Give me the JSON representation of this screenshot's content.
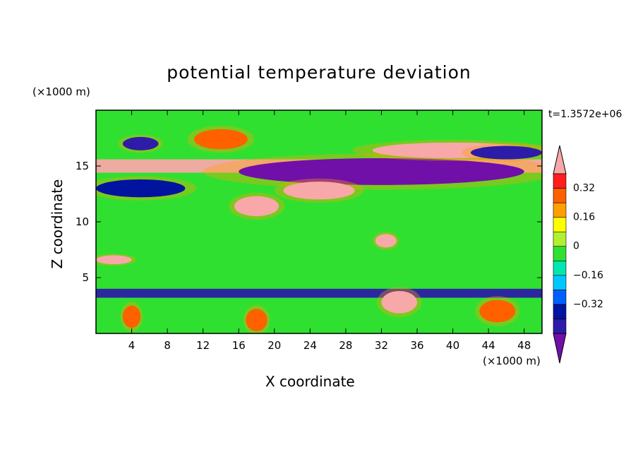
{
  "chart_data": {
    "type": "heatmap",
    "title": "potential temperature deviation",
    "xlabel": "X coordinate",
    "ylabel": "Z coordinate",
    "x_unit": "(×1000 m)",
    "y_unit": "(×1000 m)",
    "time_label": "t=1.3572e+06",
    "xlim": [
      0,
      50
    ],
    "ylim": [
      0,
      20
    ],
    "x_ticks": [
      4,
      8,
      12,
      16,
      20,
      24,
      28,
      32,
      36,
      40,
      44,
      48
    ],
    "y_ticks": [
      5,
      10,
      15
    ],
    "colorbar": {
      "levels": [
        -0.48,
        -0.4,
        -0.32,
        -0.24,
        -0.16,
        -0.08,
        0,
        0.08,
        0.16,
        0.24,
        0.32,
        0.4,
        0.48
      ],
      "tick_labels": [
        "0.32",
        "0.16",
        "0",
        "−0.16",
        "−0.32"
      ],
      "tick_values": [
        0.32,
        0.16,
        0,
        -0.16,
        -0.32
      ],
      "colors": [
        "#7010a8",
        "#2c1ca8",
        "#0014a0",
        "#0060ff",
        "#00c8ff",
        "#00e8b0",
        "#30e030",
        "#b0f030",
        "#ffff00",
        "#ffa000",
        "#ff6000",
        "#ff1e1e",
        "#f8a8a8"
      ],
      "extend": "both"
    },
    "background_color": "#30e030",
    "regions": [
      {
        "shape": "band",
        "x": [
          0,
          50
        ],
        "y": [
          14.4,
          15.6
        ],
        "value": 0.48
      },
      {
        "shape": "ellipse",
        "cx": 32,
        "cy": 14.5,
        "rx": 16,
        "ry": 1.2,
        "value": -0.48
      },
      {
        "shape": "ellipse",
        "cx": 40,
        "cy": 16.4,
        "rx": 9,
        "ry": 0.7,
        "value": 0.48
      },
      {
        "shape": "ellipse",
        "cx": 46,
        "cy": 16.2,
        "rx": 4,
        "ry": 0.6,
        "value": -0.4
      },
      {
        "shape": "ellipse",
        "cx": 5,
        "cy": 13,
        "rx": 5,
        "ry": 0.8,
        "value": -0.32
      },
      {
        "shape": "ellipse",
        "cx": 18,
        "cy": 11.4,
        "rx": 2.5,
        "ry": 0.9,
        "value": 0.48
      },
      {
        "shape": "ellipse",
        "cx": 25,
        "cy": 12.8,
        "rx": 4,
        "ry": 0.8,
        "value": 0.48
      },
      {
        "shape": "ellipse",
        "cx": 32.5,
        "cy": 8.3,
        "rx": 1.2,
        "ry": 0.6,
        "value": 0.48
      },
      {
        "shape": "ellipse",
        "cx": 14,
        "cy": 17.4,
        "rx": 3,
        "ry": 0.9,
        "value": 0.32
      },
      {
        "shape": "ellipse",
        "cx": 5,
        "cy": 17,
        "rx": 2,
        "ry": 0.6,
        "value": -0.4
      },
      {
        "shape": "ellipse",
        "cx": 2,
        "cy": 6.6,
        "rx": 2,
        "ry": 0.4,
        "value": 0.48
      },
      {
        "shape": "band",
        "x": [
          0,
          50
        ],
        "y": [
          3.2,
          4.0
        ],
        "value": -0.4
      },
      {
        "shape": "ellipse",
        "cx": 4,
        "cy": 1.5,
        "rx": 1,
        "ry": 1,
        "value": 0.32
      },
      {
        "shape": "ellipse",
        "cx": 18,
        "cy": 1.2,
        "rx": 1.2,
        "ry": 1,
        "value": 0.32
      },
      {
        "shape": "ellipse",
        "cx": 34,
        "cy": 2.8,
        "rx": 2,
        "ry": 1,
        "value": 0.48
      },
      {
        "shape": "ellipse",
        "cx": 45,
        "cy": 2,
        "rx": 2,
        "ry": 1,
        "value": 0.32
      }
    ]
  }
}
